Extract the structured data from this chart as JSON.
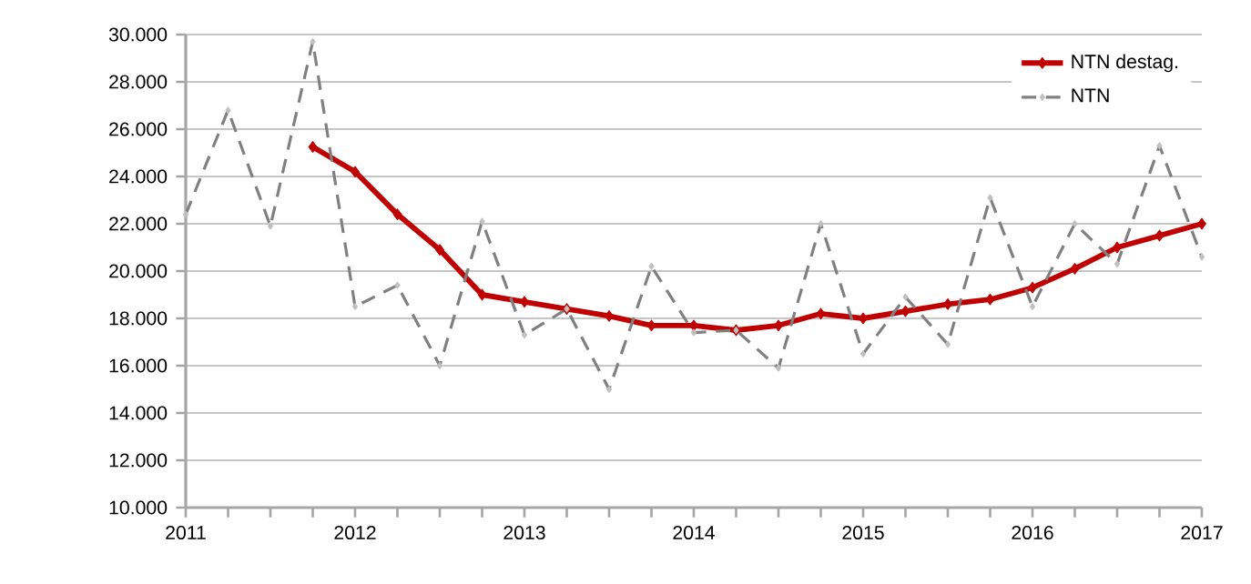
{
  "chart_data": {
    "type": "line",
    "x": [
      2011,
      2011.25,
      2011.5,
      2011.75,
      2012,
      2012.25,
      2012.5,
      2012.75,
      2013,
      2013.25,
      2013.5,
      2013.75,
      2014,
      2014.25,
      2014.5,
      2014.75,
      2015,
      2015.25,
      2015.5,
      2015.75,
      2016,
      2016.25,
      2016.5,
      2016.75,
      2017
    ],
    "series": [
      {
        "name": "NTN destag.",
        "color": "#c00000",
        "marker": "diamond",
        "line_style": "solid",
        "values": [
          null,
          null,
          null,
          25250,
          24200,
          22400,
          20900,
          19000,
          18700,
          18400,
          18100,
          17700,
          17700,
          17500,
          17700,
          18200,
          18000,
          18300,
          18600,
          18800,
          19300,
          20100,
          21000,
          21500,
          22000
        ]
      },
      {
        "name": "NTN",
        "color": "#808080",
        "marker": "diamond",
        "line_style": "dashed",
        "values": [
          22400,
          26800,
          21900,
          29700,
          18500,
          19400,
          16000,
          22100,
          17300,
          18400,
          15000,
          20200,
          17400,
          17500,
          15900,
          22000,
          16500,
          18900,
          16900,
          23100,
          18500,
          22000,
          20300,
          25300,
          20600
        ]
      }
    ],
    "xlim": [
      2011,
      2017
    ],
    "xticks": [
      2011,
      {
        "value": 2011.25,
        "label": null
      },
      {
        "value": 2011.5,
        "label": null
      },
      {
        "value": 2011.75,
        "label": null
      },
      2012,
      {
        "value": 2012.25,
        "label": null
      },
      {
        "value": 2012.5,
        "label": null
      },
      {
        "value": 2012.75,
        "label": null
      },
      2013,
      {
        "value": 2013.25,
        "label": null
      },
      {
        "value": 2013.5,
        "label": null
      },
      {
        "value": 2013.75,
        "label": null
      },
      2014,
      {
        "value": 2014.25,
        "label": null
      },
      {
        "value": 2014.5,
        "label": null
      },
      {
        "value": 2014.75,
        "label": null
      },
      2015,
      {
        "value": 2015.25,
        "label": null
      },
      {
        "value": 2015.5,
        "label": null
      },
      {
        "value": 2015.75,
        "label": null
      },
      2016,
      {
        "value": 2016.25,
        "label": null
      },
      {
        "value": 2016.5,
        "label": null
      },
      {
        "value": 2016.75,
        "label": null
      },
      2017
    ],
    "ylim": [
      10000,
      30000
    ],
    "yticks": [
      {
        "value": 10000,
        "label": "10.000"
      },
      {
        "value": 12000,
        "label": "12.000"
      },
      {
        "value": 14000,
        "label": "14.000"
      },
      {
        "value": 16000,
        "label": "16.000"
      },
      {
        "value": 18000,
        "label": "18.000"
      },
      {
        "value": 20000,
        "label": "20.000"
      },
      {
        "value": 22000,
        "label": "22.000"
      },
      {
        "value": 24000,
        "label": "24.000"
      },
      {
        "value": 26000,
        "label": "26.000"
      },
      {
        "value": 28000,
        "label": "28.000"
      },
      {
        "value": 30000,
        "label": "30.000"
      }
    ],
    "grid": "y",
    "legend": "top right"
  }
}
